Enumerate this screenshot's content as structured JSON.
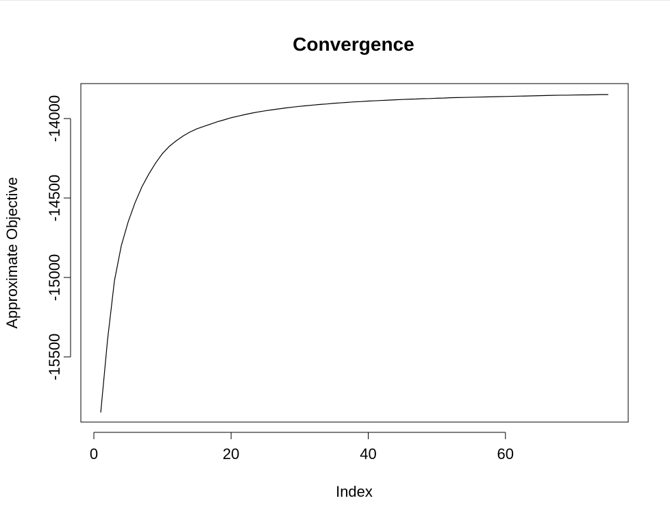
{
  "chart_data": {
    "type": "line",
    "title": "Convergence",
    "xlabel": "Index",
    "ylabel": "Approximate Objective",
    "x_ticks": [
      0,
      20,
      40,
      60
    ],
    "y_ticks": [
      -15500,
      -15000,
      -14500,
      -14000
    ],
    "xlim": [
      -1.9,
      77.9
    ],
    "ylim": [
      -15910,
      -13780
    ],
    "grid": false,
    "legend": "none",
    "series": [
      {
        "x": [
          1,
          2,
          3,
          4,
          5,
          6,
          7,
          8,
          9,
          10,
          11,
          12,
          13,
          14,
          15,
          16,
          17,
          18,
          19,
          20,
          21,
          22,
          23,
          24,
          25,
          26,
          27,
          28,
          29,
          30,
          31,
          32,
          33,
          34,
          35,
          36,
          37,
          38,
          39,
          40,
          41,
          42,
          43,
          44,
          45,
          46,
          47,
          48,
          49,
          50,
          51,
          52,
          53,
          54,
          55,
          56,
          57,
          58,
          59,
          60,
          61,
          62,
          63,
          64,
          65,
          66,
          67,
          68,
          69,
          70,
          71,
          72,
          73,
          74,
          75
        ],
        "values": [
          -15850,
          -15390,
          -15020,
          -14800,
          -14650,
          -14530,
          -14430,
          -14350,
          -14280,
          -14220,
          -14175,
          -14140,
          -14110,
          -14085,
          -14065,
          -14050,
          -14035,
          -14020,
          -14008,
          -13995,
          -13985,
          -13975,
          -13966,
          -13958,
          -13951,
          -13945,
          -13939,
          -13933,
          -13928,
          -13923,
          -13919,
          -13915,
          -13911,
          -13908,
          -13904,
          -13901,
          -13898,
          -13895,
          -13893,
          -13890,
          -13888,
          -13886,
          -13884,
          -13882,
          -13880,
          -13878,
          -13877,
          -13875,
          -13874,
          -13872,
          -13871,
          -13869,
          -13868,
          -13867,
          -13866,
          -13865,
          -13864,
          -13863,
          -13862,
          -13861,
          -13860,
          -13859,
          -13858,
          -13857,
          -13856,
          -13855,
          -13854,
          -13853,
          -13853,
          -13852,
          -13851,
          -13851,
          -13850,
          -13849,
          -13849
        ]
      }
    ]
  }
}
